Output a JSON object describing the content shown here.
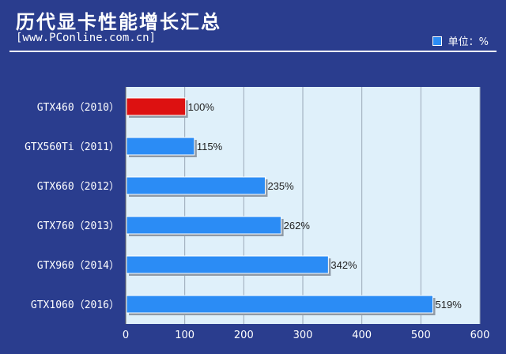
{
  "header": {
    "title": "历代显卡性能增长汇总",
    "source": "[www.PConline.com.cn]",
    "unit": "单位：%"
  },
  "colors": {
    "background": "#2a3d8e",
    "plot_bg": "#dff0fa",
    "bar_default": "#2b8cf5",
    "bar_highlight": "#dd1111",
    "grid": "#9aa8b8"
  },
  "chart_data": {
    "type": "bar",
    "orientation": "horizontal",
    "categories": [
      "GTX460（2010）",
      "GTX560Ti（2011）",
      "GTX660（2012）",
      "GTX760（2013）",
      "GTX960（2014）",
      "GTX1060（2016）"
    ],
    "values": [
      100,
      115,
      235,
      262,
      342,
      519
    ],
    "data_labels": [
      "100%",
      "115%",
      "235%",
      "262%",
      "342%",
      "519%"
    ],
    "highlight_index": 0,
    "xlim": [
      0,
      600
    ],
    "xticks": [
      0,
      100,
      200,
      300,
      400,
      500,
      600
    ],
    "title": "历代显卡性能增长汇总",
    "xlabel": "",
    "ylabel": "",
    "grid": true
  }
}
